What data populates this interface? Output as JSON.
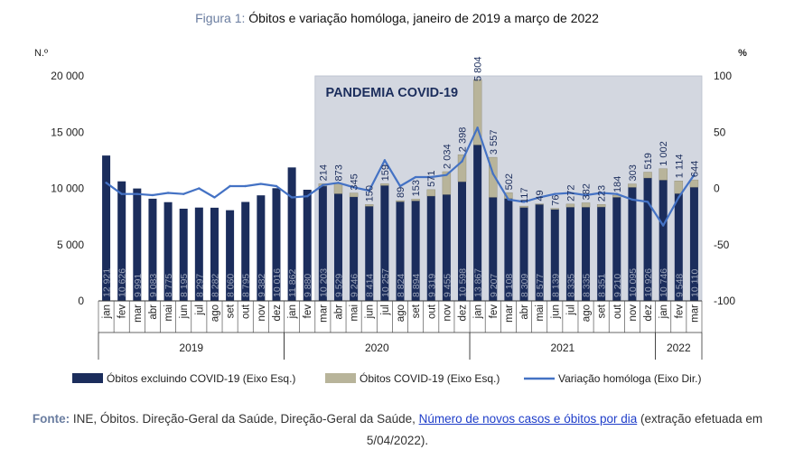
{
  "figure": {
    "title_lead": "Figura 1:",
    "title_text": "Óbitos e variação homóloga, janeiro de 2019 a março de 2022"
  },
  "colors": {
    "bar_excl": "#1b2d5c",
    "bar_covid": "#b8b49a",
    "line": "#4472c4",
    "pandemic_bg": "#d3d7e0"
  },
  "chart_data": {
    "type": "bar",
    "stacked": true,
    "categories": [
      "jan",
      "fev",
      "mar",
      "abr",
      "mai",
      "jun",
      "jul",
      "ago",
      "set",
      "out",
      "nov",
      "dez",
      "jan",
      "fev",
      "mar",
      "abr",
      "mai",
      "jun",
      "jul",
      "ago",
      "set",
      "out",
      "nov",
      "dez",
      "jan",
      "fev",
      "mar",
      "abr",
      "mai",
      "jun",
      "jul",
      "ago",
      "set",
      "out",
      "nov",
      "dez",
      "jan",
      "fev",
      "mar"
    ],
    "years": [
      {
        "label": "2019",
        "start": 0,
        "end": 11
      },
      {
        "label": "2020",
        "start": 12,
        "end": 23
      },
      {
        "label": "2021",
        "start": 24,
        "end": 35
      },
      {
        "label": "2022",
        "start": 36,
        "end": 38
      }
    ],
    "series": [
      {
        "name": "Óbitos excluindo COVID-19 (Eixo Esq.)",
        "axis": "left",
        "values": [
          12921,
          10626,
          9991,
          9083,
          8775,
          8195,
          8297,
          8282,
          8060,
          8795,
          9382,
          10016,
          11862,
          9880,
          10203,
          9529,
          9246,
          8414,
          10257,
          8824,
          8894,
          9319,
          9455,
          10598,
          13867,
          9207,
          9108,
          8309,
          8577,
          8139,
          8335,
          8335,
          8351,
          9210,
          10095,
          10926,
          10746,
          9548,
          10110
        ]
      },
      {
        "name": "Óbitos COVID-19 (Eixo Esq.)",
        "axis": "left",
        "values": [
          null,
          null,
          null,
          null,
          null,
          null,
          null,
          null,
          null,
          null,
          null,
          null,
          null,
          null,
          214,
          873,
          345,
          150,
          159,
          89,
          153,
          571,
          2034,
          2398,
          5804,
          3557,
          502,
          117,
          49,
          76,
          272,
          382,
          223,
          184,
          303,
          519,
          1002,
          1114,
          644
        ]
      },
      {
        "name": "Variação homóloga (Eixo Dir.)",
        "axis": "right",
        "type": "line",
        "values": [
          5,
          -5,
          -5,
          -6,
          -4,
          -5,
          0,
          -8,
          2,
          2,
          4,
          2,
          -8,
          -7,
          3,
          5,
          1,
          -2,
          25,
          2,
          10,
          10,
          12,
          24,
          54,
          13,
          -10,
          -12,
          -8,
          -5,
          -4,
          -6,
          -4,
          -5,
          -10,
          -12,
          -33,
          -8,
          12
        ]
      }
    ],
    "excl_labels": [
      "12 921",
      "10 626",
      "9 991",
      "9 083",
      "8 775",
      "8 195",
      "8 297",
      "8 282",
      "8 060",
      "8 795",
      "9 382",
      "10 016",
      "11 862",
      "9 880",
      "10 203",
      "9 529",
      "9 246",
      "8 414",
      "10 257",
      "8 824",
      "8 894",
      "9 319",
      "9 455",
      "10 598",
      "13 867",
      "9 207",
      "9 108",
      "8 309",
      "8 577",
      "8 139",
      "8 335",
      "8 335",
      "8 351",
      "9 210",
      "10 095",
      "10 926",
      "10 746",
      "9 548",
      "10 110"
    ],
    "covid_labels": [
      "",
      "",
      "",
      "",
      "",
      "",
      "",
      "",
      "",
      "",
      "",
      "",
      "",
      "",
      "214",
      "873",
      "345",
      "150",
      "159",
      "89",
      "153",
      "571",
      "2 034",
      "2 398",
      "5 804",
      "3 557",
      "502",
      "117",
      "49",
      "76",
      "272",
      "382",
      "223",
      "184",
      "303",
      "519",
      "1 002",
      "1 114",
      "644"
    ],
    "ylabel_left": "N.º",
    "ylabel_right": "%",
    "ylim_left": [
      0,
      20000
    ],
    "ylim_right": [
      -100,
      100
    ],
    "yticks_left": [
      {
        "v": 0,
        "label": "0"
      },
      {
        "v": 5000,
        "label": "5 000"
      },
      {
        "v": 10000,
        "label": "10 000"
      },
      {
        "v": 15000,
        "label": "15 000"
      },
      {
        "v": 20000,
        "label": "20 000"
      }
    ],
    "yticks_right": [
      {
        "v": -100,
        "label": "-100"
      },
      {
        "v": -50,
        "label": "-50"
      },
      {
        "v": 0,
        "label": "0"
      },
      {
        "v": 50,
        "label": "50"
      },
      {
        "v": 100,
        "label": "100"
      }
    ],
    "annotation": "PANDEMIA COVID-19",
    "pandemic_start_index": 14,
    "grid": false,
    "legend_position": "bottom"
  },
  "legend": {
    "items": [
      {
        "label": "Óbitos excluindo COVID-19 (Eixo Esq.)"
      },
      {
        "label": "Óbitos COVID-19 (Eixo Esq.)"
      },
      {
        "label": "Variação homóloga (Eixo Dir.)"
      }
    ]
  },
  "source": {
    "lead": "Fonte:",
    "text_before": "INE, Óbitos. Direção-Geral da Saúde, Direção-Geral da Saúde, ",
    "link_text": "Número de novos casos e óbitos por dia",
    "text_after": " (extração efetuada em 5/04/2022)."
  }
}
